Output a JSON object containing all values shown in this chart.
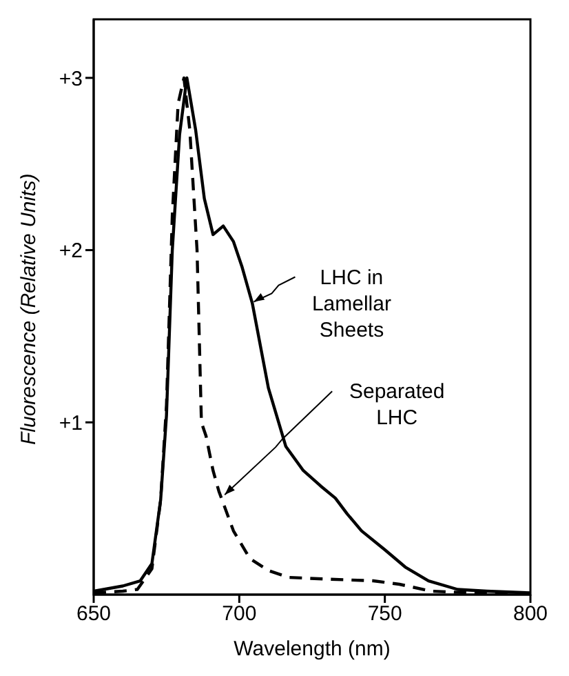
{
  "chart_data": {
    "type": "line",
    "xlabel": "Wavelength (nm)",
    "ylabel": "Fluorescence (Relative Units)",
    "xlim": [
      650,
      800
    ],
    "ylim": [
      0,
      3.34
    ],
    "xticks": [
      650,
      700,
      750,
      800
    ],
    "yticks": [
      {
        "value": 1,
        "label": "+1"
      },
      {
        "value": 2,
        "label": "+2"
      },
      {
        "value": 3,
        "label": "+3"
      }
    ],
    "grid": false,
    "legend": false,
    "marker": "none",
    "series": [
      {
        "color": "#000000",
        "line_style": "solid",
        "x": [
          650,
          660,
          666,
          670,
          673,
          675,
          677,
          679.5,
          682,
          685,
          688,
          691,
          694.5,
          698,
          701,
          704.5,
          710,
          716,
          722,
          728,
          733,
          737,
          742,
          750,
          757,
          765,
          775,
          785,
          800
        ],
        "values": [
          0.02,
          0.05,
          0.08,
          0.18,
          0.55,
          1.04,
          2.0,
          2.67,
          3.0,
          2.7,
          2.3,
          2.09,
          2.14,
          2.05,
          1.9,
          1.69,
          1.2,
          0.86,
          0.72,
          0.63,
          0.56,
          0.47,
          0.37,
          0.26,
          0.16,
          0.08,
          0.03,
          0.02,
          0.01
        ]
      },
      {
        "color": "#000000",
        "line_style": "dashed",
        "x": [
          650,
          660,
          665,
          670,
          673,
          675,
          677,
          679,
          681,
          683,
          685.5,
          687,
          688.6,
          691,
          693,
          698,
          703.6,
          710,
          717,
          730,
          746,
          755,
          766,
          780,
          800
        ],
        "values": [
          0.01,
          0.02,
          0.03,
          0.15,
          0.55,
          1.1,
          2.2,
          2.85,
          3.0,
          2.7,
          2.0,
          1.0,
          0.92,
          0.72,
          0.6,
          0.37,
          0.21,
          0.14,
          0.1,
          0.09,
          0.08,
          0.06,
          0.02,
          0.01,
          0.0
        ]
      }
    ],
    "annotations": [
      {
        "text": "LHC in Lamellar Sheets",
        "x": 705,
        "y": 1.7
      },
      {
        "text": "Separated LHC",
        "x": 695,
        "y": 0.58
      }
    ]
  }
}
